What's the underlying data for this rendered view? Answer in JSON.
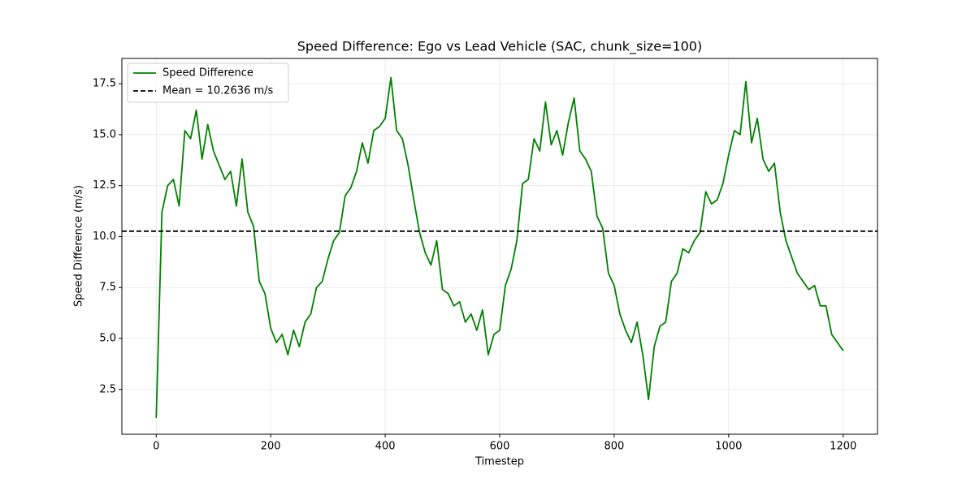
{
  "chart_data": {
    "type": "line",
    "title": "Speed Difference: Ego vs Lead Vehicle (SAC, chunk_size=100)",
    "x_label": "Timestep",
    "y_label": "Speed Difference (m/s)",
    "x": [
      0,
      10,
      20,
      30,
      40,
      50,
      60,
      70,
      80,
      90,
      100,
      110,
      120,
      130,
      140,
      150,
      160,
      170,
      180,
      190,
      200,
      210,
      220,
      230,
      240,
      250,
      260,
      270,
      280,
      290,
      300,
      310,
      320,
      330,
      340,
      350,
      360,
      370,
      380,
      390,
      400,
      410,
      420,
      430,
      440,
      450,
      460,
      470,
      480,
      490,
      500,
      510,
      520,
      530,
      540,
      550,
      560,
      570,
      580,
      590,
      600,
      610,
      620,
      630,
      640,
      650,
      660,
      670,
      680,
      690,
      700,
      710,
      720,
      730,
      740,
      750,
      760,
      770,
      780,
      790,
      800,
      810,
      820,
      830,
      840,
      850,
      860,
      870,
      880,
      890,
      900,
      910,
      920,
      930,
      940,
      950,
      960,
      970,
      980,
      990,
      1000,
      1010,
      1020,
      1030,
      1040,
      1050,
      1060,
      1070,
      1080,
      1090,
      1100,
      1110,
      1120,
      1130,
      1140,
      1150,
      1160,
      1170,
      1180,
      1190,
      1200
    ],
    "series": [
      {
        "name": "Speed Difference",
        "color": "#008000",
        "values": [
          1.1,
          11.2,
          12.5,
          12.8,
          11.5,
          15.2,
          14.8,
          16.2,
          13.8,
          15.5,
          14.2,
          13.5,
          12.8,
          13.2,
          11.5,
          13.8,
          11.2,
          10.5,
          7.8,
          7.2,
          5.5,
          4.8,
          5.2,
          4.2,
          5.4,
          4.6,
          5.8,
          6.2,
          7.5,
          7.8,
          8.9,
          9.8,
          10.2,
          12.0,
          12.4,
          13.2,
          14.6,
          13.6,
          15.2,
          15.4,
          15.8,
          17.8,
          15.2,
          14.8,
          13.5,
          11.8,
          10.2,
          9.2,
          8.6,
          9.8,
          7.4,
          7.2,
          6.6,
          6.8,
          5.8,
          6.2,
          5.4,
          6.4,
          4.2,
          5.2,
          5.4,
          7.6,
          8.4,
          9.8,
          12.6,
          12.8,
          14.8,
          14.2,
          16.6,
          14.5,
          15.2,
          14.0,
          15.6,
          16.8,
          14.2,
          13.8,
          13.2,
          11.0,
          10.4,
          8.2,
          7.6,
          6.2,
          5.4,
          4.8,
          5.8,
          4.2,
          2.0,
          4.6,
          5.6,
          5.8,
          7.8,
          8.2,
          9.4,
          9.2,
          9.8,
          10.2,
          12.2,
          11.6,
          11.8,
          12.6,
          14.0,
          15.2,
          15.0,
          17.6,
          14.6,
          15.8,
          13.8,
          13.2,
          13.6,
          11.2,
          9.8,
          9.0,
          8.2,
          7.8,
          7.4,
          7.6,
          6.6,
          6.6,
          5.2,
          4.8,
          4.4
        ]
      }
    ],
    "mean_line": {
      "value": 10.2636,
      "label": "Mean = 10.2636 m/s",
      "color": "#000000"
    },
    "xlim": [
      -60,
      1260
    ],
    "ylim": [
      0.3,
      18.74
    ],
    "xticks": [
      0,
      200,
      400,
      600,
      800,
      1000,
      1200
    ],
    "yticks": [
      2.5,
      {
        "value": 5,
        "label": "5.0"
      },
      7.5,
      {
        "value": 10,
        "label": "10.0"
      },
      12.5,
      {
        "value": 15,
        "label": "15.0"
      },
      17.5
    ],
    "grid": true,
    "legend": "upper left"
  }
}
